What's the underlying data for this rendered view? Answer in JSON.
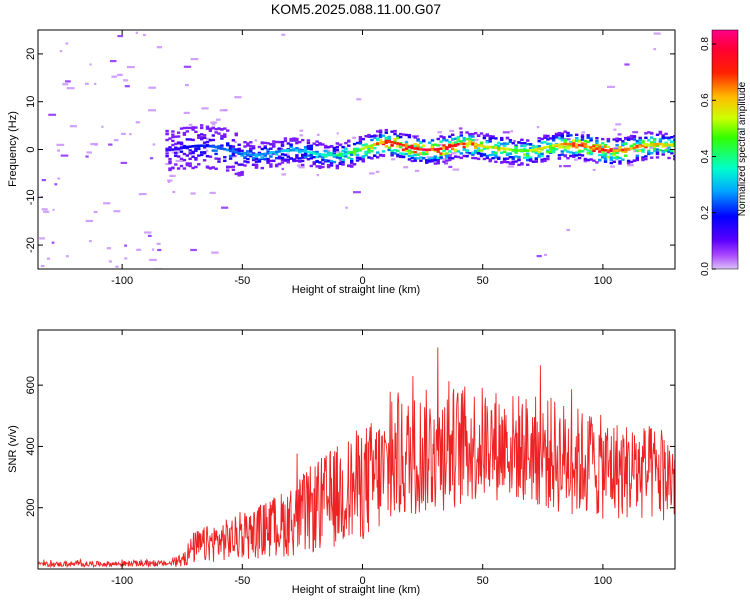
{
  "title": "KOM5.2025.088.11.00.G07",
  "chart_data": [
    {
      "type": "heatmap",
      "xlabel": "Height of straight line (km)",
      "ylabel": "Frequency (Hz)",
      "xlim": [
        -135,
        130
      ],
      "ylim": [
        -25,
        25
      ],
      "xticks": [
        -100,
        -50,
        0,
        50,
        100
      ],
      "yticks": [
        -20,
        -10,
        0,
        10,
        20
      ],
      "colorbar": {
        "label": "Normalized spectral amplitude",
        "range": [
          0,
          0.85
        ],
        "ticks": [
          0.0,
          0.2,
          0.4,
          0.6,
          0.8
        ],
        "colors": [
          "#cf9af5",
          "#7a00ff",
          "#0000ff",
          "#00dfff",
          "#00ff66",
          "#a6ff00",
          "#ffee00",
          "#ff8800",
          "#ff0000",
          "#ff0080"
        ]
      },
      "ridge": {
        "x": [
          -80,
          -60,
          -40,
          -20,
          -5,
          10,
          20,
          40,
          50,
          60,
          80,
          100,
          130
        ],
        "freq": [
          0.5,
          0.0,
          -0.5,
          -1.0,
          0.0,
          1.0,
          0.5,
          1.0,
          0.0,
          0.5,
          0.5,
          0.5,
          0.5
        ],
        "peak_amplitude": [
          0.15,
          0.25,
          0.3,
          0.35,
          0.45,
          0.75,
          0.8,
          0.75,
          0.6,
          0.55,
          0.6,
          0.8,
          0.55
        ]
      }
    },
    {
      "type": "line",
      "xlabel": "Height of straight line (km)",
      "ylabel": "SNR (v/v)",
      "xlim": [
        -135,
        130
      ],
      "ylim": [
        0,
        780
      ],
      "xticks": [
        -100,
        -50,
        0,
        50,
        100
      ],
      "yticks": [
        200,
        400,
        600
      ],
      "series_color": "#ee2222",
      "envelope": {
        "x": [
          -135,
          -80,
          -75,
          -70,
          -60,
          -50,
          -40,
          -30,
          -20,
          -10,
          0,
          10,
          20,
          30,
          40,
          50,
          60,
          70,
          80,
          90,
          100,
          110,
          120,
          130
        ],
        "mean": [
          15,
          18,
          30,
          70,
          90,
          105,
          130,
          155,
          200,
          240,
          280,
          320,
          370,
          390,
          400,
          410,
          400,
          390,
          370,
          350,
          330,
          320,
          310,
          300
        ],
        "amplitude": [
          8,
          10,
          25,
          55,
          65,
          75,
          95,
          115,
          150,
          170,
          190,
          200,
          200,
          210,
          200,
          190,
          180,
          180,
          190,
          180,
          170,
          160,
          160,
          150
        ]
      }
    }
  ]
}
